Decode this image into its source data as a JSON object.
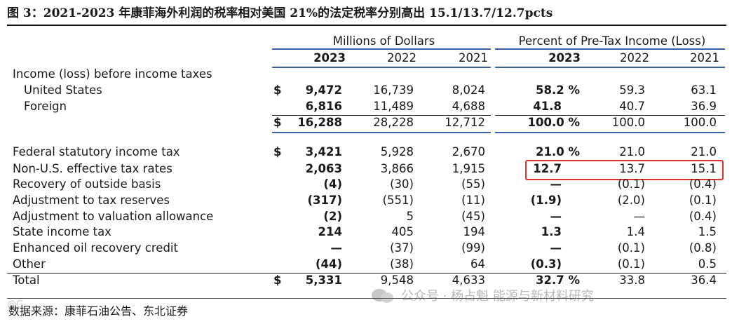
{
  "title": "图 3：2021-2023 年康菲海外利润的税率相对美国 21%的法定税率分别高出 15.1/13.7/12.7pcts",
  "source": "数据来源：康菲石油公告、东北证券",
  "watermark": "公众号 · 杨占魁 能源与新材料研究",
  "watermark_corner": "@G",
  "headers": {
    "millions": "Millions of Dollars",
    "percent": "Percent of Pre-Tax Income (Loss)",
    "years": [
      "2023",
      "2022",
      "2021",
      "2023",
      "2022",
      "2021"
    ]
  },
  "section_label": "Income (loss) before income taxes",
  "rows": [
    {
      "label": "United States",
      "dollar": "$",
      "v": [
        "9,472",
        "16,739",
        "8,024",
        "58.2 %",
        "59.3",
        "63.1"
      ]
    },
    {
      "label": "Foreign",
      "dollar": "",
      "v": [
        "6,816",
        "11,489",
        "4,688",
        "41.8",
        "40.7",
        "36.9"
      ]
    },
    {
      "label": "",
      "dollar": "$",
      "v": [
        "16,288",
        "28,228",
        "12,712",
        "100.0 %",
        "100.0",
        "100.0"
      ]
    },
    {
      "label": "Federal statutory income tax",
      "dollar": "$",
      "v": [
        "3,421",
        "5,928",
        "2,670",
        "21.0 %",
        "21.0",
        "21.0"
      ]
    },
    {
      "label": "Non-U.S. effective tax rates",
      "dollar": "",
      "v": [
        "2,063",
        "3,866",
        "1,915",
        "12.7",
        "13.7",
        "15.1"
      ]
    },
    {
      "label": "Recovery of outside basis",
      "dollar": "",
      "v": [
        "(4)",
        "(30)",
        "(55)",
        "—",
        "(0.1)",
        "(0.4)"
      ]
    },
    {
      "label": "Adjustment to tax reserves",
      "dollar": "",
      "v": [
        "(317)",
        "(551)",
        "(11)",
        "(1.9)",
        "(2.0)",
        "(0.1)"
      ]
    },
    {
      "label": "Adjustment to valuation allowance",
      "dollar": "",
      "v": [
        "(2)",
        "5",
        "(45)",
        "—",
        "—",
        "(0.4)"
      ]
    },
    {
      "label": "State income tax",
      "dollar": "",
      "v": [
        "214",
        "405",
        "194",
        "1.3",
        "1.4",
        "1.5"
      ]
    },
    {
      "label": "Enhanced oil recovery credit",
      "dollar": "",
      "v": [
        "—",
        "(37)",
        "(99)",
        "—",
        "(0.1)",
        "(0.8)"
      ]
    },
    {
      "label": "Other",
      "dollar": "",
      "v": [
        "(44)",
        "(38)",
        "64",
        "(0.3)",
        "(0.1)",
        "0.5"
      ]
    },
    {
      "label": "Total",
      "dollar": "$",
      "v": [
        "5,331",
        "9,548",
        "4,633",
        "32.7 %",
        "33.8",
        "36.4"
      ]
    }
  ],
  "colors": {
    "rule_blue": "#3a5ea8",
    "highlight_red": "#e03030"
  }
}
